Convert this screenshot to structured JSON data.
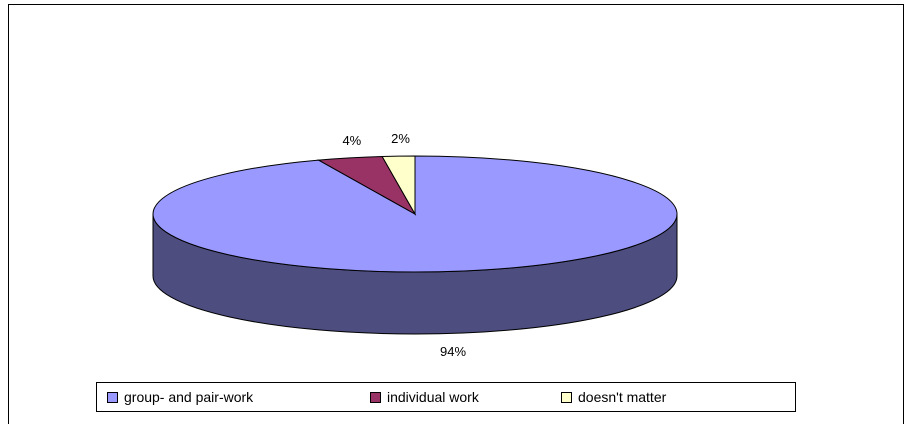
{
  "chart_data": {
    "type": "pie",
    "title": "",
    "three_d": true,
    "categories": [
      "group- and pair-work",
      "individual work",
      "doesn't matter"
    ],
    "values": [
      94,
      4,
      2
    ],
    "labels": [
      "94%",
      "4%",
      "2%"
    ],
    "colors": [
      "#9999ff",
      "#993366",
      "#ffffcc"
    ],
    "side_colors": [
      "#4d4d80",
      "#4d1a33",
      "#808066"
    ],
    "legend_position": "bottom"
  }
}
